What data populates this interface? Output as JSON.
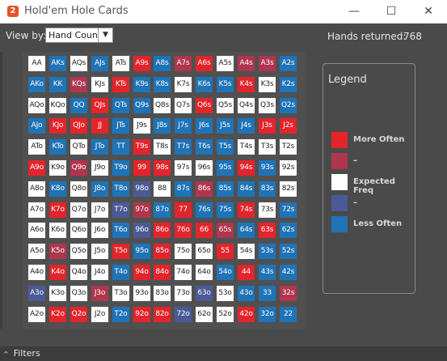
{
  "window": {
    "app_icon": "2",
    "title": "Hold'em Hole Cards",
    "minimize_glyph": "—",
    "maximize_glyph": "☐",
    "close_glyph": "✕"
  },
  "toolbar": {
    "viewby_label": "View by:",
    "viewby_value": "Hand Count",
    "viewby_arrow": "▼",
    "hands_returned_label": "Hands returned:",
    "hands_returned_value": "768"
  },
  "colors": {
    "more_often": "#e3242b",
    "slightly_more": "#b0354e",
    "expected": "#ffffff",
    "slightly_less": "#4b5a96",
    "less_often": "#1f73b7"
  },
  "legend": {
    "title": "Legend",
    "items": [
      {
        "label": "More Often",
        "color": "#e3242b"
      },
      {
        "label": "–",
        "color": "#b0354e"
      },
      {
        "label": "Expected Freq",
        "color": "#ffffff"
      },
      {
        "label": "–",
        "color": "#4b5a96"
      },
      {
        "label": "Less Often",
        "color": "#1f73b7"
      }
    ]
  },
  "grid": {
    "rows": [
      [
        "AA",
        "AKs",
        "AQs",
        "AJs",
        "ATs",
        "A9s",
        "A8s",
        "A7s",
        "A6s",
        "A5s",
        "A4s",
        "A3s",
        "A2s"
      ],
      [
        "AKo",
        "KK",
        "KQs",
        "KJs",
        "KTs",
        "K9s",
        "K8s",
        "K7s",
        "K6s",
        "K5s",
        "K4s",
        "K3s",
        "K2s"
      ],
      [
        "AQo",
        "KQo",
        "QQ",
        "QJs",
        "QTs",
        "Q9s",
        "Q8s",
        "Q7s",
        "Q6s",
        "Q5s",
        "Q4s",
        "Q3s",
        "Q2s"
      ],
      [
        "AJo",
        "KJo",
        "QJo",
        "JJ",
        "JTs",
        "J9s",
        "J8s",
        "J7s",
        "J6s",
        "J5s",
        "J4s",
        "J3s",
        "J2s"
      ],
      [
        "ATo",
        "KTo",
        "QTo",
        "JTo",
        "TT",
        "T9s",
        "T8s",
        "T7s",
        "T6s",
        "T5s",
        "T4s",
        "T3s",
        "T2s"
      ],
      [
        "A9o",
        "K9o",
        "Q9o",
        "J9o",
        "T9o",
        "99",
        "98s",
        "97s",
        "96s",
        "95s",
        "94s",
        "93s",
        "92s"
      ],
      [
        "A8o",
        "K8o",
        "Q8o",
        "J8o",
        "T8o",
        "98o",
        "88",
        "87s",
        "86s",
        "85s",
        "84s",
        "83s",
        "82s"
      ],
      [
        "A7o",
        "K7o",
        "Q7o",
        "J7o",
        "T7o",
        "97o",
        "87o",
        "77",
        "76s",
        "75s",
        "74s",
        "73s",
        "72s"
      ],
      [
        "A6o",
        "K6o",
        "Q6o",
        "J6o",
        "T6o",
        "96o",
        "86o",
        "76o",
        "66",
        "65s",
        "64s",
        "63s",
        "62s"
      ],
      [
        "A5o",
        "K5o",
        "Q5o",
        "J5o",
        "T5o",
        "95o",
        "85o",
        "75o",
        "65o",
        "55",
        "54s",
        "53s",
        "52s"
      ],
      [
        "A4o",
        "K4o",
        "Q4o",
        "J4o",
        "T4o",
        "94o",
        "84o",
        "74o",
        "64o",
        "54o",
        "44",
        "43s",
        "42s"
      ],
      [
        "A3o",
        "K3o",
        "Q3o",
        "J3o",
        "T3o",
        "93o",
        "83o",
        "73o",
        "63o",
        "53o",
        "43o",
        "33",
        "32s"
      ],
      [
        "A2o",
        "K2o",
        "Q2o",
        "J2o",
        "T2o",
        "92o",
        "82o",
        "72o",
        "62o",
        "52o",
        "42o",
        "32o",
        "22"
      ]
    ],
    "shades": [
      [
        "W",
        "L",
        "W",
        "L",
        "W",
        "R",
        "L",
        "S",
        "R",
        "W",
        "S",
        "S",
        "L"
      ],
      [
        "L",
        "L",
        "S",
        "W",
        "R",
        "L",
        "L",
        "W",
        "L",
        "L",
        "R",
        "W",
        "L"
      ],
      [
        "W",
        "W",
        "L",
        "R",
        "L",
        "L",
        "W",
        "W",
        "R",
        "W",
        "W",
        "W",
        "L"
      ],
      [
        "L",
        "R",
        "R",
        "R",
        "L",
        "W",
        "L",
        "L",
        "L",
        "L",
        "L",
        "R",
        "R"
      ],
      [
        "W",
        "L",
        "W",
        "L",
        "L",
        "R",
        "W",
        "L",
        "L",
        "L",
        "W",
        "W",
        "W"
      ],
      [
        "R",
        "W",
        "S",
        "W",
        "L",
        "R",
        "R",
        "W",
        "W",
        "L",
        "R",
        "L",
        "W"
      ],
      [
        "W",
        "L",
        "W",
        "L",
        "L",
        "B",
        "W",
        "L",
        "S",
        "L",
        "L",
        "L",
        "W"
      ],
      [
        "W",
        "R",
        "W",
        "W",
        "B",
        "S",
        "L",
        "R",
        "L",
        "L",
        "R",
        "W",
        "L"
      ],
      [
        "W",
        "W",
        "W",
        "W",
        "L",
        "B",
        "R",
        "R",
        "R",
        "S",
        "L",
        "R",
        "L"
      ],
      [
        "W",
        "S",
        "W",
        "W",
        "R",
        "L",
        "R",
        "W",
        "W",
        "R",
        "W",
        "L",
        "L"
      ],
      [
        "W",
        "R",
        "W",
        "W",
        "L",
        "R",
        "R",
        "W",
        "W",
        "L",
        "R",
        "L",
        "L"
      ],
      [
        "B",
        "W",
        "W",
        "S",
        "W",
        "W",
        "W",
        "W",
        "B",
        "W",
        "L",
        "L",
        "S"
      ],
      [
        "W",
        "R",
        "R",
        "W",
        "L",
        "R",
        "R",
        "B",
        "W",
        "W",
        "R",
        "L",
        "L"
      ]
    ]
  },
  "footer": {
    "filters_chevron": "^",
    "filters_label": "Filters"
  }
}
